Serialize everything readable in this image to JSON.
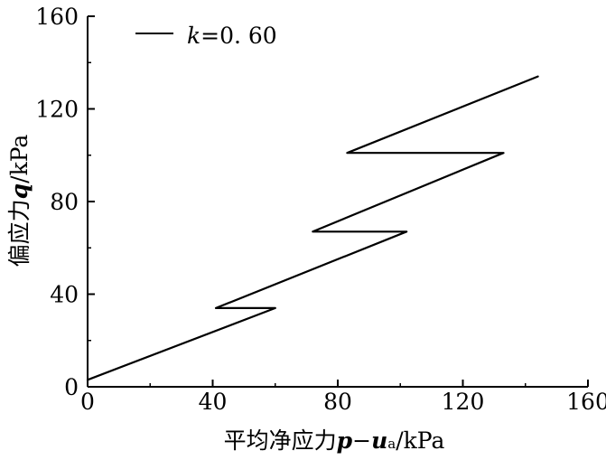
{
  "chart_data": {
    "type": "line",
    "title": "",
    "xlabel": {
      "prefix": "平均净应力",
      "var1": "p",
      "sep": "−",
      "var2": "u",
      "sub": "a",
      "unit": "/kPa"
    },
    "ylabel": {
      "prefix": "偏应力",
      "var": "q",
      "unit": "/kPa"
    },
    "xlim": [
      0,
      160
    ],
    "ylim": [
      0,
      160
    ],
    "x_ticks": [
      0,
      40,
      80,
      120,
      160
    ],
    "y_ticks": [
      0,
      40,
      80,
      120,
      160
    ],
    "x_tick_labels": [
      "0",
      "40",
      "80",
      "120",
      "160"
    ],
    "y_tick_labels": [
      "0",
      "40",
      "80",
      "120",
      "160"
    ],
    "grid": false,
    "legend_position": "top-left",
    "series": [
      {
        "name": {
          "var": "k",
          "text": "=0. 60"
        },
        "color": "#000000",
        "x": [
          0,
          60,
          60,
          41,
          102,
          102,
          72,
          133,
          133,
          83,
          144
        ],
        "y": [
          3,
          34,
          34,
          34,
          67,
          67,
          67,
          101,
          101,
          101,
          134
        ]
      }
    ]
  }
}
